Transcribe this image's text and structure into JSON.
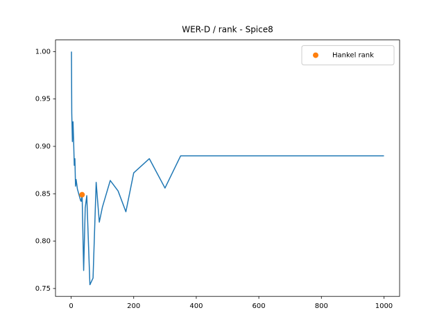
{
  "chart_data": {
    "type": "line",
    "title": "WER-D / rank - Spice8",
    "series": [
      {
        "type": "line",
        "color": "#1f77b4",
        "x": [
          1,
          2,
          4,
          6,
          8,
          10,
          12,
          14,
          16,
          20,
          30,
          32,
          35,
          40,
          45,
          50,
          60,
          70,
          80,
          90,
          100,
          125,
          150,
          175,
          200,
          250,
          300,
          350,
          1000
        ],
        "values": [
          1.0,
          0.935,
          0.905,
          0.926,
          0.905,
          0.88,
          0.887,
          0.858,
          0.865,
          0.855,
          0.843,
          0.842,
          0.85,
          0.769,
          0.835,
          0.848,
          0.754,
          0.761,
          0.862,
          0.82,
          0.836,
          0.864,
          0.853,
          0.831,
          0.872,
          0.887,
          0.856,
          0.89,
          0.89
        ]
      },
      {
        "type": "scatter",
        "name": "Hankel rank",
        "color": "#ff7f0e",
        "x": [
          35
        ],
        "values": [
          0.849
        ]
      }
    ],
    "xlim": [
      -50,
      1050
    ],
    "xticks": [
      0,
      200,
      400,
      600,
      800,
      1000
    ],
    "ylim": [
      0.7417,
      1.0123
    ],
    "yticks": [
      {
        "value": 0.75,
        "label": "0.75"
      },
      {
        "value": 0.8,
        "label": "0.80"
      },
      {
        "value": 0.85,
        "label": "0.85"
      },
      {
        "value": 0.9,
        "label": "0.90"
      },
      {
        "value": 0.95,
        "label": "0.95"
      },
      {
        "value": 1.0,
        "label": "1.00"
      }
    ],
    "grid": false,
    "legend": "upper-right"
  }
}
